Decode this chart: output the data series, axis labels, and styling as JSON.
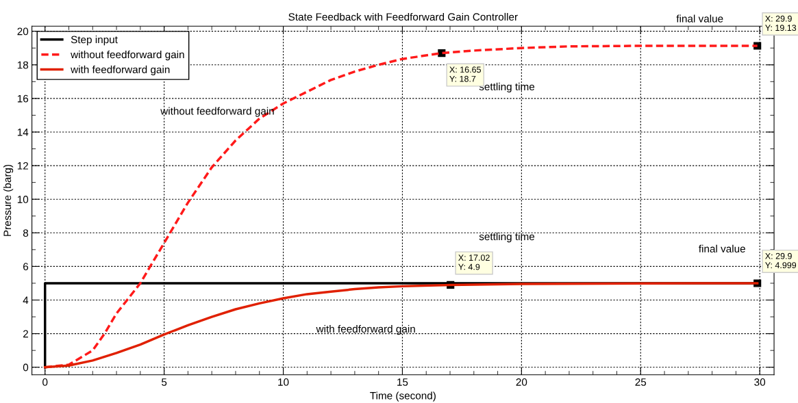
{
  "chart_data": {
    "type": "line",
    "title": "State Feedback with Feedforward Gain Controller",
    "xlabel": "Time (second)",
    "ylabel": "Pressure (barg)",
    "xlim": [
      -0.55,
      30.6
    ],
    "ylim": [
      -0.45,
      20.3
    ],
    "xticks": [
      0,
      5,
      10,
      15,
      20,
      25,
      30
    ],
    "yticks": [
      0,
      2,
      4,
      6,
      8,
      10,
      12,
      14,
      16,
      18,
      20
    ],
    "grid": true,
    "legend": "top left",
    "series": [
      {
        "name": "Step input",
        "color": "#000000",
        "type": "step",
        "line_style": "solid",
        "x": [
          0,
          0,
          30
        ],
        "values": [
          0,
          5,
          5
        ]
      },
      {
        "name": "without feedforward gain",
        "color": "#ff1a1a",
        "line_style": "dashed",
        "x": [
          0,
          1,
          2,
          2.5,
          3,
          4,
          5,
          6,
          7,
          8,
          9,
          10,
          11,
          12,
          13,
          14,
          15,
          16.65,
          18,
          20,
          22,
          25,
          29.9
        ],
        "values": [
          0,
          0.15,
          1,
          2,
          3.2,
          5,
          7.4,
          9.8,
          11.9,
          13.5,
          14.8,
          15.7,
          16.4,
          17.1,
          17.6,
          18.0,
          18.35,
          18.7,
          18.85,
          19.0,
          19.1,
          19.13,
          19.13
        ]
      },
      {
        "name": "with feedforward gain",
        "color": "#e02000",
        "line_style": "solid",
        "x": [
          0,
          1,
          2,
          3,
          4,
          5,
          6,
          7,
          8,
          9,
          10,
          11,
          12,
          13,
          14,
          15,
          17.02,
          20,
          25,
          29.9
        ],
        "values": [
          0,
          0.1,
          0.4,
          0.85,
          1.35,
          1.95,
          2.5,
          3.0,
          3.45,
          3.8,
          4.1,
          4.35,
          4.5,
          4.65,
          4.75,
          4.82,
          4.9,
          4.96,
          4.99,
          4.999
        ]
      }
    ],
    "annotations": [
      {
        "text": "X: 16.65\nY: 18.7",
        "x": 16.65,
        "y": 18.7
      },
      {
        "text": "X: 29.9\nY: 19.13",
        "x": 29.9,
        "y": 19.13
      },
      {
        "text": "X: 17.02\nY: 4.9",
        "x": 17.02,
        "y": 4.9
      },
      {
        "text": "X: 29.9\nY: 4.999",
        "x": 29.9,
        "y": 4.999
      },
      "settling time",
      "final value",
      "settling time",
      "final value",
      "without feedforward gain",
      "with feedforward gain"
    ]
  }
}
